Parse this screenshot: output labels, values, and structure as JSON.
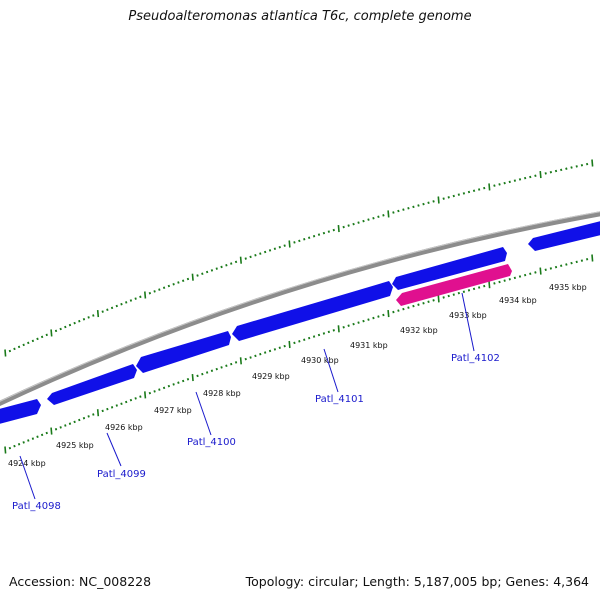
{
  "title": "Pseudoalteromonas atlantica T6c, complete genome",
  "footer": {
    "accession": "Accession: NC_008228",
    "summary": "Topology: circular; Length: 5,187,005 bp; Genes: 4,364"
  },
  "colors": {
    "backbone": "#8c8c8c",
    "forward_gene": "#1010e8",
    "reverse_gene": "#e0108f",
    "ticks": "#1a7a1a",
    "gene_label": "#1a1acc"
  },
  "tick_labels": [
    "4924 kbp",
    "4925 kbp",
    "4926 kbp",
    "4927 kbp",
    "4928 kbp",
    "4929 kbp",
    "4930 kbp",
    "4931 kbp",
    "4932 kbp",
    "4933 kbp",
    "4934 kbp",
    "4935 kbp"
  ],
  "genes": [
    {
      "label": "Patl_4098",
      "strand": "forward"
    },
    {
      "label": "Patl_4099",
      "strand": "forward"
    },
    {
      "label": "Patl_4100",
      "strand": "forward"
    },
    {
      "label": "Patl_4101",
      "strand": "forward"
    },
    {
      "label": "Patl_4102",
      "strand": "reverse"
    }
  ]
}
